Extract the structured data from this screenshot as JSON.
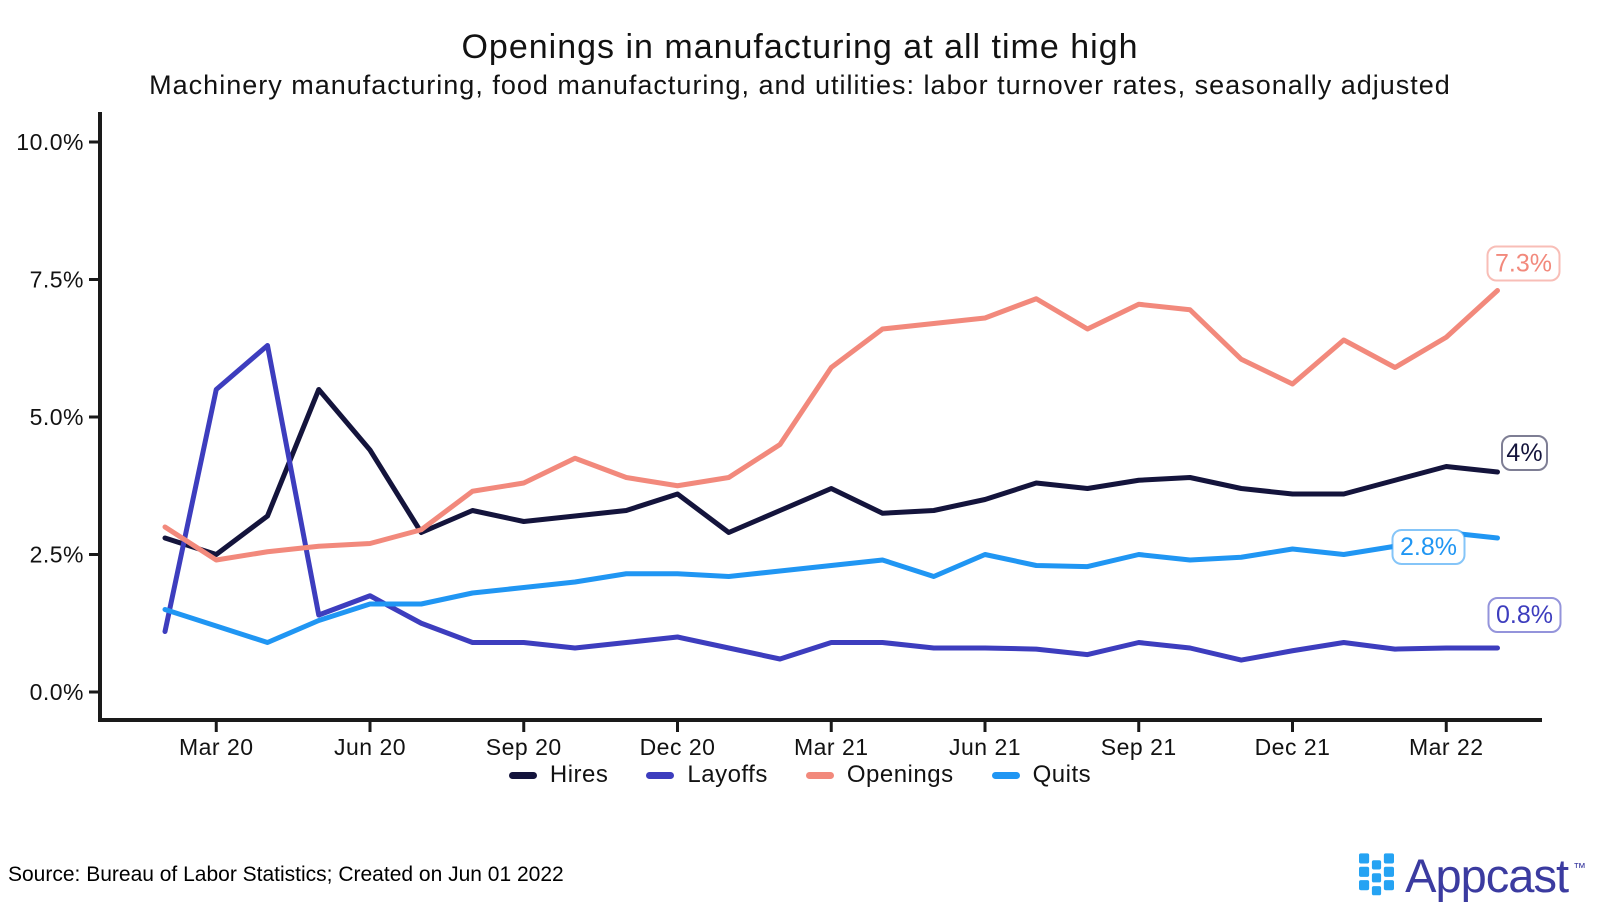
{
  "chart_data": {
    "type": "line",
    "title": "Openings in manufacturing at all time high",
    "subtitle": "Machinery manufacturing, food manufacturing, and utilities: labor turnover rates, seasonally adjusted",
    "x": [
      "Feb 20",
      "Mar 20",
      "Apr 20",
      "May 20",
      "Jun 20",
      "Jul 20",
      "Aug 20",
      "Sep 20",
      "Oct 20",
      "Nov 20",
      "Dec 20",
      "Jan 21",
      "Feb 21",
      "Mar 21",
      "Apr 21",
      "May 21",
      "Jun 21",
      "Jul 21",
      "Aug 21",
      "Sep 21",
      "Oct 21",
      "Nov 21",
      "Dec 21",
      "Jan 22",
      "Feb 22",
      "Mar 22",
      "Apr 22"
    ],
    "ylabel": "",
    "xlabel": "",
    "ylim": [
      0,
      10.5
    ],
    "grid": false,
    "legend_position": "bottom-center",
    "series": [
      {
        "name": "Hires",
        "color": "#14143C",
        "values": [
          2.8,
          2.5,
          3.2,
          5.5,
          4.4,
          2.9,
          3.3,
          3.1,
          3.2,
          3.3,
          3.6,
          2.9,
          3.3,
          3.7,
          3.25,
          3.3,
          3.5,
          3.8,
          3.7,
          3.85,
          3.9,
          3.7,
          3.6,
          3.6,
          3.85,
          4.1,
          4.0
        ]
      },
      {
        "name": "Layoffs",
        "color": "#3D3DBE",
        "values": [
          1.1,
          5.5,
          6.3,
          1.4,
          1.75,
          1.25,
          0.9,
          0.9,
          0.8,
          0.9,
          1.0,
          0.8,
          0.6,
          0.9,
          0.9,
          0.8,
          0.8,
          0.78,
          0.68,
          0.9,
          0.8,
          0.58,
          0.75,
          0.9,
          0.78,
          0.8,
          0.8
        ]
      },
      {
        "name": "Openings",
        "color": "#F2897C",
        "values": [
          3.0,
          2.4,
          2.55,
          2.65,
          2.7,
          2.95,
          3.65,
          3.8,
          4.25,
          3.9,
          3.75,
          3.9,
          4.5,
          5.9,
          6.6,
          6.7,
          6.8,
          7.15,
          6.6,
          7.05,
          6.95,
          6.05,
          5.6,
          6.4,
          5.9,
          6.45,
          7.3
        ]
      },
      {
        "name": "Quits",
        "color": "#2096F3",
        "values": [
          1.5,
          1.2,
          0.9,
          1.3,
          1.6,
          1.6,
          1.8,
          1.9,
          2.0,
          2.15,
          2.15,
          2.1,
          2.2,
          2.3,
          2.4,
          2.1,
          2.5,
          2.3,
          2.28,
          2.5,
          2.4,
          2.45,
          2.6,
          2.5,
          2.65,
          2.9,
          2.8
        ]
      }
    ],
    "x_axis": {
      "tick_labels": [
        {
          "label": "Mar 20",
          "month_index": 1
        },
        {
          "label": "Jun 20",
          "month_index": 4
        },
        {
          "label": "Sep 20",
          "month_index": 7
        },
        {
          "label": "Dec 20",
          "month_index": 10
        },
        {
          "label": "Mar 21",
          "month_index": 13
        },
        {
          "label": "Jun 21",
          "month_index": 16
        },
        {
          "label": "Sep 21",
          "month_index": 19
        },
        {
          "label": "Dec 21",
          "month_index": 22
        },
        {
          "label": "Mar 22",
          "month_index": 25
        }
      ]
    },
    "y_axis": {
      "tick_labels": [
        {
          "label": "0.0%",
          "value": 0
        },
        {
          "label": "2.5%",
          "value": 2.5
        },
        {
          "label": "5.0%",
          "value": 5
        },
        {
          "label": "7.5%",
          "value": 7.5
        },
        {
          "label": "10.0%",
          "value": 10
        }
      ]
    },
    "end_labels": [
      {
        "series": "Openings",
        "text": "7.3%"
      },
      {
        "series": "Hires",
        "text": "4%"
      },
      {
        "series": "Quits",
        "text": "2.8%"
      },
      {
        "series": "Layoffs",
        "text": "0.8%"
      }
    ],
    "legend": [
      "Hires",
      "Layoffs",
      "Openings",
      "Quits"
    ]
  },
  "footer": {
    "source_text": "Source: Bureau of Labor Statistics; Created on Jun 01 2022",
    "brand_name": "Appcast",
    "trademark": "™"
  },
  "colors": {
    "axis": "#1A1A1A",
    "background": "#FFFFFF",
    "logo_square": "#25A3F3",
    "logo_text": "#3B3BA0"
  }
}
